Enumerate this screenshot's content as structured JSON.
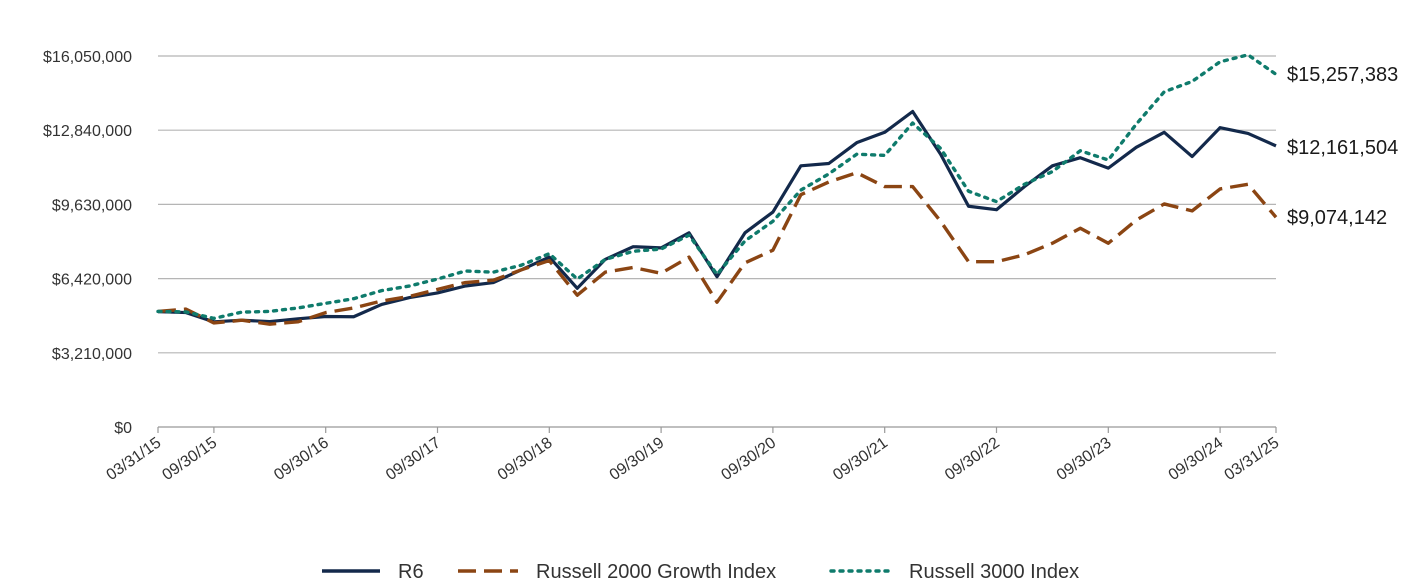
{
  "chart_data": {
    "type": "line",
    "title": "",
    "xlabel": "",
    "ylabel": "",
    "ylim": [
      0,
      16050000
    ],
    "y_ticks": [
      {
        "value": 0,
        "label": "$0"
      },
      {
        "value": 3210000,
        "label": "$3,210,000"
      },
      {
        "value": 6420000,
        "label": "$6,420,000"
      },
      {
        "value": 9630000,
        "label": "$9,630,000"
      },
      {
        "value": 12840000,
        "label": "$12,840,000"
      },
      {
        "value": 16050000,
        "label": "$16,050,000"
      }
    ],
    "x_ticks": [
      {
        "index": 0,
        "label": "03/31/15"
      },
      {
        "index": 2,
        "label": "09/30/15"
      },
      {
        "index": 6,
        "label": "09/30/16"
      },
      {
        "index": 10,
        "label": "09/30/17"
      },
      {
        "index": 14,
        "label": "09/30/18"
      },
      {
        "index": 18,
        "label": "09/30/19"
      },
      {
        "index": 22,
        "label": "09/30/20"
      },
      {
        "index": 26,
        "label": "09/30/21"
      },
      {
        "index": 30,
        "label": "09/30/22"
      },
      {
        "index": 34,
        "label": "09/30/23"
      },
      {
        "index": 38,
        "label": "09/30/24"
      },
      {
        "index": 40,
        "label": "03/31/25"
      }
    ],
    "x": [
      "03/31/15",
      "06/30/15",
      "09/30/15",
      "12/31/15",
      "03/31/16",
      "06/30/16",
      "09/30/16",
      "12/31/16",
      "03/31/17",
      "06/30/17",
      "09/30/17",
      "12/31/17",
      "03/31/18",
      "06/30/18",
      "09/30/18",
      "12/31/18",
      "03/31/19",
      "06/30/19",
      "09/30/19",
      "12/31/19",
      "03/31/20",
      "06/30/20",
      "09/30/20",
      "12/31/20",
      "03/31/21",
      "06/30/21",
      "09/30/21",
      "12/31/21",
      "03/31/22",
      "06/30/22",
      "09/30/22",
      "12/31/22",
      "03/31/23",
      "06/30/23",
      "09/30/23",
      "12/31/23",
      "03/31/24",
      "06/30/24",
      "09/30/24",
      "12/31/24",
      "03/31/25"
    ],
    "series": [
      {
        "name": "R6",
        "color": "#13294b",
        "style": "solid",
        "end_label": "$12,161,504",
        "values": [
          4990000,
          4950000,
          4550000,
          4620000,
          4560000,
          4680000,
          4780000,
          4770000,
          5300000,
          5600000,
          5800000,
          6100000,
          6250000,
          6800000,
          7350000,
          6000000,
          7250000,
          7800000,
          7750000,
          8400000,
          6500000,
          8400000,
          9300000,
          11300000,
          11400000,
          12300000,
          12750000,
          13650000,
          11800000,
          9550000,
          9400000,
          10400000,
          11300000,
          11650000,
          11200000,
          12100000,
          12750000,
          11700000,
          12950000,
          12700000,
          12161504
        ]
      },
      {
        "name": "Russell 2000 Growth Index",
        "color": "#8b4513",
        "style": "dashed",
        "end_label": "$9,074,142",
        "values": [
          5000000,
          5100000,
          4500000,
          4620000,
          4450000,
          4550000,
          4950000,
          5150000,
          5450000,
          5650000,
          5950000,
          6250000,
          6350000,
          6800000,
          7200000,
          5700000,
          6700000,
          6900000,
          6650000,
          7350000,
          5400000,
          7100000,
          7650000,
          10050000,
          10600000,
          11000000,
          10400000,
          10400000,
          8900000,
          7150000,
          7150000,
          7450000,
          7950000,
          8600000,
          7950000,
          8950000,
          9650000,
          9350000,
          10300000,
          10500000,
          9074142
        ]
      },
      {
        "name": "Russell 3000 Index",
        "color": "#0f7b6c",
        "style": "dotted",
        "end_label": "$15,257,383",
        "values": [
          5000000,
          4980000,
          4700000,
          4970000,
          5000000,
          5150000,
          5350000,
          5550000,
          5900000,
          6100000,
          6400000,
          6750000,
          6700000,
          7000000,
          7500000,
          6400000,
          7250000,
          7600000,
          7700000,
          8300000,
          6600000,
          8050000,
          8900000,
          10250000,
          10950000,
          11800000,
          11750000,
          13150000,
          12050000,
          10200000,
          9750000,
          10500000,
          11050000,
          11950000,
          11550000,
          13100000,
          14500000,
          14950000,
          15800000,
          16100000,
          15257383
        ]
      }
    ]
  }
}
